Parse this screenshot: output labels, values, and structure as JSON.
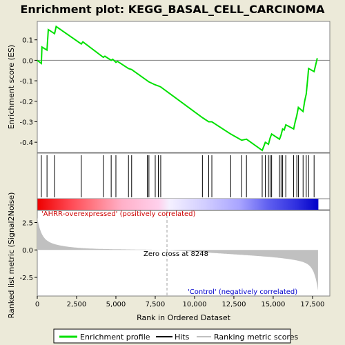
{
  "chart_data": {
    "type": "line",
    "title": "Enrichment plot: KEGG_BASAL_CELL_CARCINOMA",
    "es_panel": {
      "ylabel": "Enrichment score (ES)",
      "ylim": [
        -0.45,
        0.19
      ],
      "yticks": [
        0.1,
        0.0,
        -0.1,
        -0.2,
        -0.3,
        -0.4
      ],
      "ytick_labels": [
        "0.1",
        "0.0",
        "-0.1",
        "-0.2",
        "-0.3",
        "-0.4"
      ],
      "series": [
        {
          "name": "Enrichment profile",
          "color": "#00e000",
          "x": [
            0,
            260,
            300,
            620,
            700,
            1100,
            1200,
            2800,
            2900,
            4200,
            4300,
            4700,
            4800,
            5000,
            5100,
            5800,
            6000,
            7000,
            7100,
            7500,
            7700,
            7850,
            10500,
            10900,
            11100,
            12300,
            13000,
            13300,
            14300,
            14400,
            14500,
            14700,
            14800,
            14850,
            14900,
            15400,
            15500,
            15600,
            15700,
            15800,
            16300,
            16400,
            16500,
            16600,
            16900,
            17000,
            17100,
            17200,
            17250,
            17600,
            17800
          ],
          "y": [
            0.0,
            -0.015,
            0.065,
            0.05,
            0.15,
            0.13,
            0.165,
            0.08,
            0.09,
            0.015,
            0.02,
            0.0,
            0.005,
            -0.01,
            -0.005,
            -0.04,
            -0.045,
            -0.1,
            -0.105,
            -0.12,
            -0.125,
            -0.13,
            -0.28,
            -0.3,
            -0.3,
            -0.36,
            -0.39,
            -0.385,
            -0.44,
            -0.42,
            -0.4,
            -0.41,
            -0.38,
            -0.37,
            -0.36,
            -0.385,
            -0.365,
            -0.335,
            -0.34,
            -0.315,
            -0.335,
            -0.3,
            -0.27,
            -0.23,
            -0.25,
            -0.2,
            -0.165,
            -0.085,
            -0.04,
            -0.055,
            0.01
          ]
        }
      ]
    },
    "hits": [
      260,
      620,
      1100,
      2800,
      4200,
      4700,
      5000,
      5800,
      6000,
      7000,
      7100,
      7500,
      7700,
      7850,
      10500,
      10900,
      11100,
      12300,
      13000,
      13300,
      14300,
      14500,
      14700,
      14800,
      14900,
      15400,
      15500,
      15600,
      15800,
      16300,
      16500,
      16600,
      16900,
      17100,
      17250,
      17600
    ],
    "ranked_panel": {
      "ylabel": "Ranked list metric (Signal2Noise)",
      "ylim": [
        -4.2,
        3.6
      ],
      "yticks": [
        2.5,
        0.0,
        -2.5
      ],
      "ytick_labels": [
        "2.5",
        "0.0",
        "-2.5"
      ],
      "positive_label": "'AHRR-overexpressed' (positively correlated)",
      "negative_label": "'Control' (negatively correlated)",
      "zero_cross_label": "Zero cross at 8248",
      "zero_cross": 8248
    },
    "xlabel": "Rank in Ordered Dataset",
    "xlim": [
      0,
      18600
    ],
    "xticks": [
      0,
      2500,
      5000,
      7500,
      10000,
      12500,
      15000,
      17500
    ],
    "xtick_labels": [
      "0",
      "2,500",
      "5,000",
      "7,500",
      "10,000",
      "12,500",
      "15,000",
      "17,500"
    ],
    "n_genes": 17850,
    "legend": {
      "items": [
        {
          "label": "Enrichment profile",
          "color": "#00e000"
        },
        {
          "label": "Hits",
          "color": "#000000"
        },
        {
          "label": "Ranking metric scores",
          "color": "#c0c0c0"
        }
      ],
      "placement": "bottom"
    }
  }
}
